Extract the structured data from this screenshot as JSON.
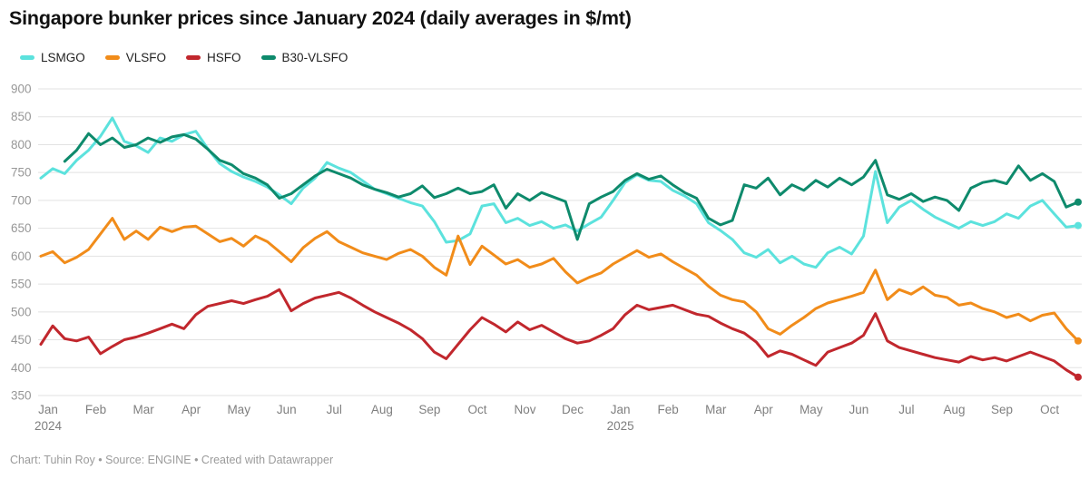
{
  "header": {
    "title": "Singapore bunker prices since January 2024 (daily averages in $/mt)"
  },
  "footer": {
    "credit": "Chart: Tuhin Roy • Source: ENGINE • Created with Datawrapper"
  },
  "chart_data": {
    "type": "line",
    "title": "Singapore bunker prices since January 2024 (daily averages in $/mt)",
    "unit": "$/mt",
    "ylim": [
      350,
      900
    ],
    "y_tick_step": 50,
    "grid": "horizontal",
    "legend_position": "top-left",
    "samples_per_month": 4,
    "x_ticks": [
      {
        "label": "Jan",
        "year": "2024"
      },
      {
        "label": "Feb"
      },
      {
        "label": "Mar"
      },
      {
        "label": "Apr"
      },
      {
        "label": "May"
      },
      {
        "label": "Jun"
      },
      {
        "label": "Jul"
      },
      {
        "label": "Aug"
      },
      {
        "label": "Sep"
      },
      {
        "label": "Oct"
      },
      {
        "label": "Nov"
      },
      {
        "label": "Dec"
      },
      {
        "label": "Jan",
        "year": "2025"
      },
      {
        "label": "Feb"
      },
      {
        "label": "Mar"
      },
      {
        "label": "Apr"
      },
      {
        "label": "May"
      },
      {
        "label": "Jun"
      },
      {
        "label": "Jul"
      },
      {
        "label": "Aug"
      },
      {
        "label": "Sep"
      },
      {
        "label": "Oct"
      }
    ],
    "series": [
      {
        "name": "LSMGO",
        "color": "#5ce2dd",
        "values": [
          740,
          757,
          748,
          772,
          790,
          815,
          848,
          806,
          798,
          786,
          812,
          806,
          818,
          824,
          793,
          766,
          752,
          742,
          734,
          724,
          710,
          694,
          722,
          740,
          768,
          758,
          750,
          735,
          720,
          712,
          704,
          696,
          690,
          662,
          625,
          628,
          640,
          690,
          694,
          660,
          668,
          655,
          662,
          650,
          656,
          645,
          658,
          670,
          700,
          732,
          746,
          736,
          734,
          718,
          708,
          694,
          660,
          646,
          630,
          606,
          598,
          612,
          588,
          600,
          586,
          580,
          606,
          616,
          604,
          636,
          752,
          660,
          688,
          700,
          684,
          670,
          660,
          650,
          662,
          655,
          662,
          676,
          668,
          690,
          700,
          676,
          652,
          655
        ]
      },
      {
        "name": "VLSFO",
        "color": "#f18c1a",
        "values": [
          600,
          608,
          588,
          598,
          612,
          640,
          668,
          630,
          645,
          630,
          652,
          644,
          652,
          654,
          640,
          626,
          632,
          618,
          636,
          626,
          608,
          590,
          615,
          632,
          644,
          626,
          616,
          606,
          600,
          594,
          605,
          612,
          600,
          580,
          566,
          636,
          585,
          618,
          602,
          586,
          594,
          580,
          586,
          596,
          572,
          552,
          562,
          570,
          586,
          598,
          610,
          598,
          604,
          590,
          578,
          566,
          546,
          530,
          522,
          518,
          500,
          470,
          460,
          476,
          490,
          506,
          516,
          522,
          528,
          535,
          575,
          522,
          540,
          532,
          545,
          530,
          526,
          512,
          516,
          506,
          500,
          490,
          496,
          484,
          494,
          498,
          470,
          448
        ]
      },
      {
        "name": "HSFO",
        "color": "#c1272d",
        "values": [
          442,
          475,
          452,
          448,
          455,
          425,
          438,
          450,
          455,
          462,
          470,
          478,
          470,
          495,
          510,
          515,
          520,
          515,
          522,
          528,
          540,
          502,
          515,
          525,
          530,
          535,
          525,
          512,
          500,
          490,
          480,
          468,
          452,
          428,
          416,
          442,
          468,
          490,
          478,
          464,
          482,
          468,
          476,
          464,
          452,
          444,
          448,
          458,
          470,
          495,
          512,
          504,
          508,
          512,
          504,
          496,
          492,
          480,
          470,
          462,
          446,
          420,
          430,
          424,
          414,
          404,
          428,
          436,
          444,
          458,
          497,
          448,
          436,
          430,
          424,
          418,
          414,
          410,
          420,
          414,
          418,
          412,
          420,
          428,
          420,
          412,
          396,
          383
        ]
      },
      {
        "name": "B30-VLSFO",
        "color": "#0e8a6c",
        "values": [
          null,
          null,
          770,
          790,
          820,
          800,
          812,
          795,
          800,
          812,
          804,
          814,
          818,
          810,
          792,
          772,
          764,
          748,
          740,
          728,
          704,
          712,
          728,
          744,
          756,
          748,
          740,
          728,
          720,
          714,
          706,
          712,
          726,
          705,
          712,
          722,
          712,
          716,
          728,
          686,
          712,
          700,
          714,
          706,
          698,
          630,
          694,
          706,
          716,
          736,
          748,
          738,
          744,
          728,
          714,
          704,
          668,
          656,
          664,
          728,
          722,
          740,
          710,
          728,
          718,
          736,
          724,
          740,
          728,
          742,
          772,
          710,
          702,
          712,
          698,
          706,
          700,
          682,
          722,
          732,
          736,
          730,
          762,
          736,
          748,
          734,
          688,
          697
        ]
      }
    ]
  },
  "style": {
    "grid_color": "#e2e2e2",
    "y_label_color": "#979797",
    "x_label_color": "#7f7f7f"
  }
}
